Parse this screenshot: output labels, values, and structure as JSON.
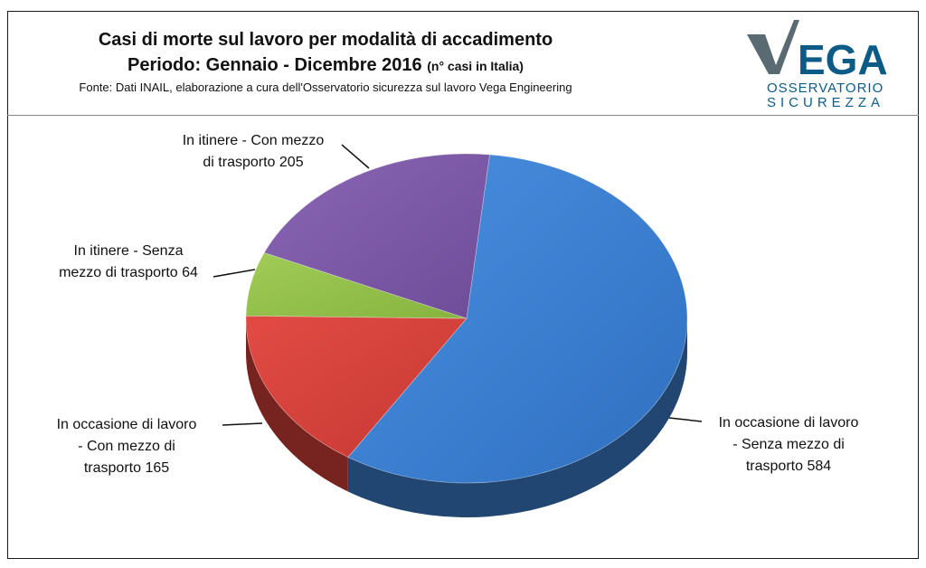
{
  "header": {
    "title": "Casi di morte sul lavoro per modalità di accadimento",
    "subtitle": "Periodo: Gennaio - Dicembre 2016",
    "subtitle_note": "(n° casi in Italia)",
    "source": "Fonte: Dati INAIL, elaborazione a cura dell'Osservatorio sicurezza sul lavoro Vega Engineering"
  },
  "logo": {
    "name": "VEGA",
    "line1": "OSSERVATORIO",
    "line2": "SICUREZZA",
    "colors": {
      "dark": "#0c5b86",
      "accent": "#5a6a72"
    }
  },
  "chart_data": {
    "type": "pie",
    "title": "Casi di morte sul lavoro per modalità di accadimento",
    "slices": [
      {
        "label_lines": [
          "In occasione di lavoro",
          "-  Senza mezzo di",
          "trasporto 584"
        ],
        "value": 584,
        "color": "#3c7fd0"
      },
      {
        "label_lines": [
          "In occasione di lavoro",
          "-  Con mezzo di",
          "trasporto 165"
        ],
        "value": 165,
        "color": "#d8403b"
      },
      {
        "label_lines": [
          "In itinere - Senza",
          "mezzo di trasporto 64"
        ],
        "value": 64,
        "color": "#93c04a"
      },
      {
        "label_lines": [
          "In itinere -   Con mezzo",
          "di trasporto 205"
        ],
        "value": 205,
        "color": "#7d58a6"
      }
    ]
  }
}
